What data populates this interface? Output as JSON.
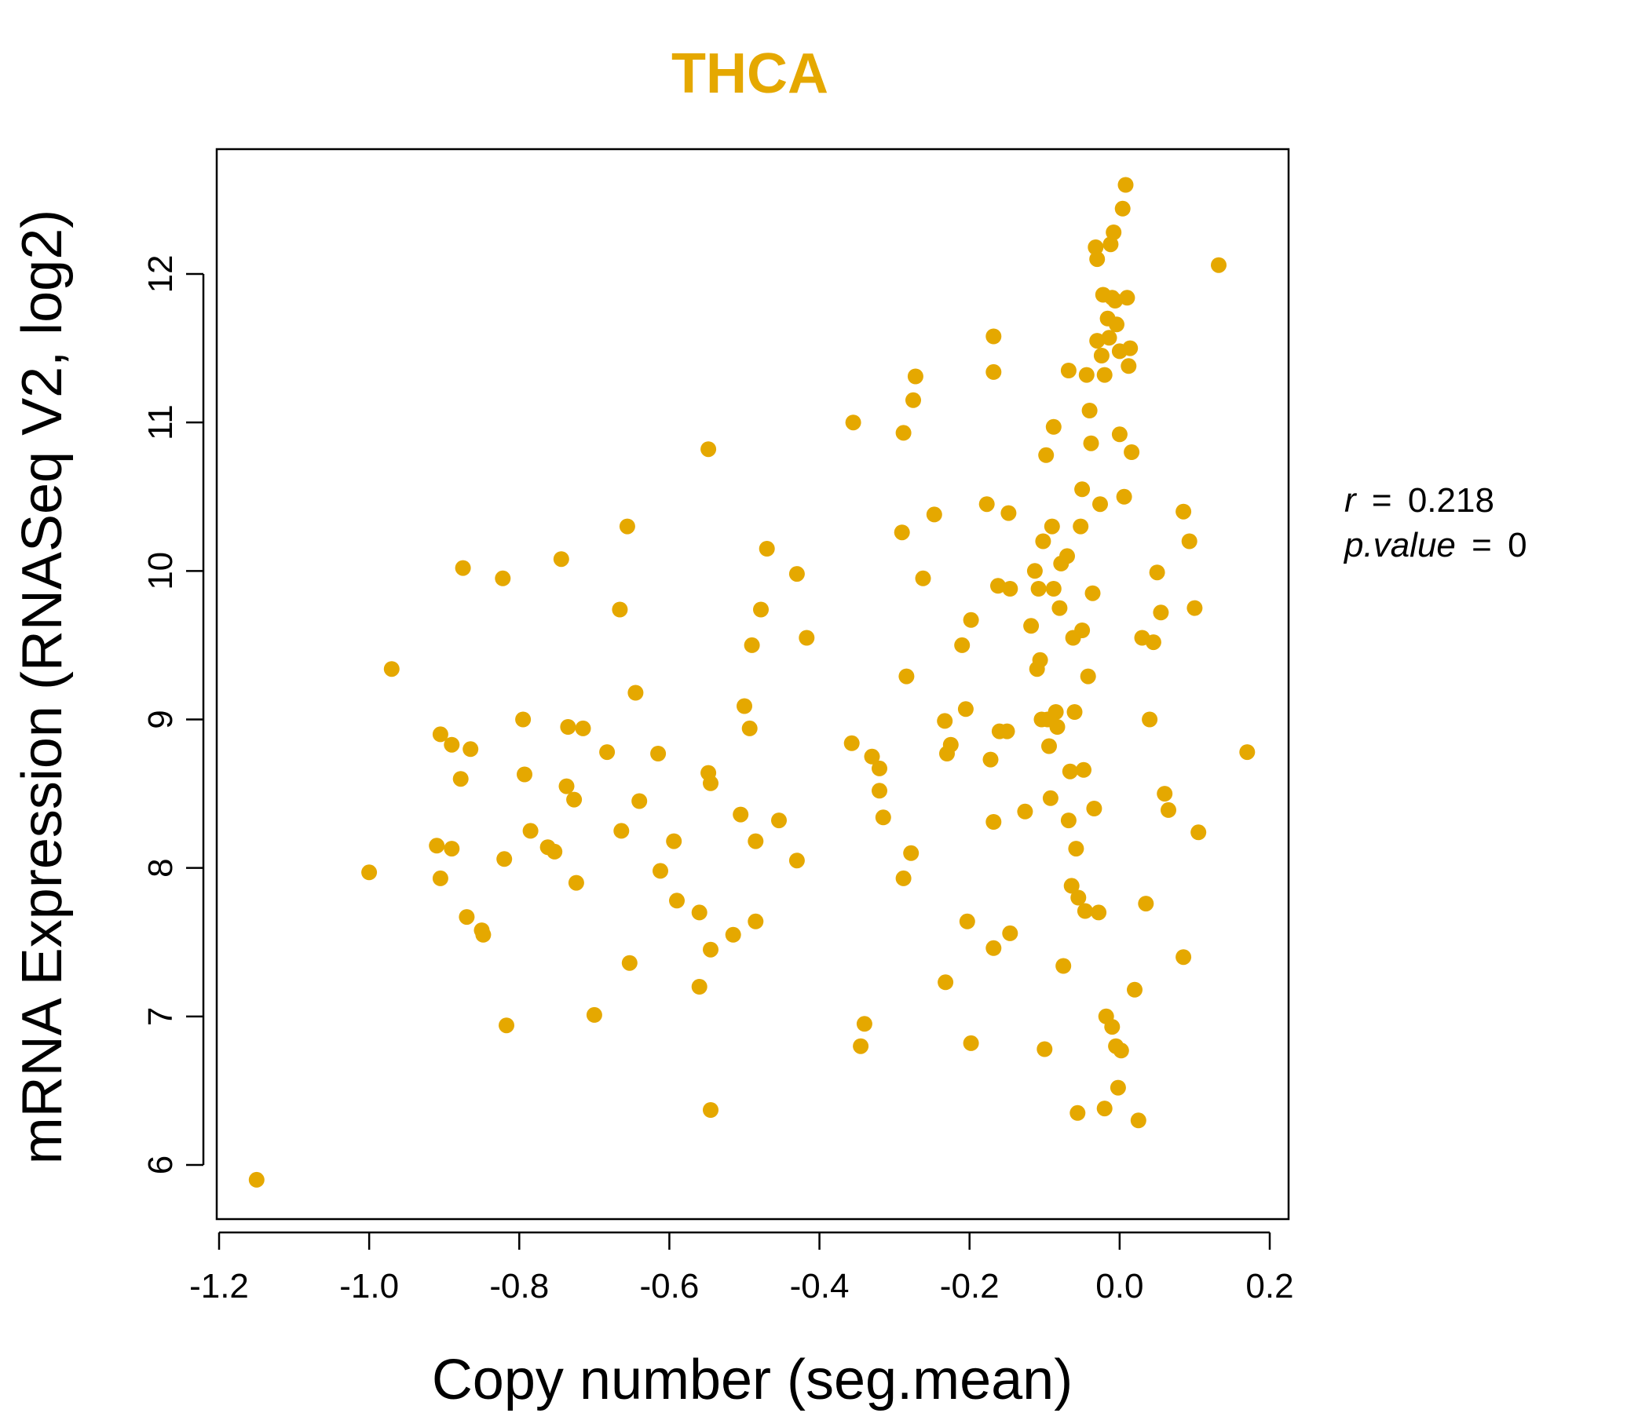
{
  "chart_data": {
    "type": "scatter",
    "title": "THCA",
    "title_color": "#E5A800",
    "point_color": "#E5A800",
    "xlabel": "Copy number (seg.mean)",
    "ylabel": "mRNA Expression (RNASeq V2, log2)",
    "xlim": [
      -1.2,
      0.2
    ],
    "ylim": [
      5.7,
      12.85
    ],
    "x_ticks": [
      -1.2,
      -1.0,
      -0.8,
      -0.6,
      -0.4,
      -0.2,
      0.0,
      0.2
    ],
    "x_tick_labels": [
      "-1.2",
      "-1.0",
      "-0.8",
      "-0.6",
      "-0.4",
      "-0.2",
      "0.0",
      "0.2"
    ],
    "y_ticks": [
      6,
      7,
      8,
      9,
      10,
      11,
      12
    ],
    "y_tick_labels": [
      "6",
      "7",
      "8",
      "9",
      "10",
      "11",
      "12"
    ],
    "annotations": {
      "r_label": "r",
      "r_eq": "=",
      "r_value": "0.218",
      "p_label": "p.value",
      "p_eq": "=",
      "p_value": "0"
    },
    "points": [
      [
        -1.15,
        5.9
      ],
      [
        -1.0,
        7.97
      ],
      [
        -0.97,
        9.34
      ],
      [
        -0.91,
        8.15
      ],
      [
        -0.905,
        8.9
      ],
      [
        -0.905,
        7.93
      ],
      [
        -0.89,
        8.83
      ],
      [
        -0.89,
        8.13
      ],
      [
        -0.875,
        10.02
      ],
      [
        -0.878,
        8.6
      ],
      [
        -0.87,
        7.67
      ],
      [
        -0.865,
        8.8
      ],
      [
        -0.85,
        7.58
      ],
      [
        -0.848,
        7.55
      ],
      [
        -0.822,
        9.95
      ],
      [
        -0.82,
        8.06
      ],
      [
        -0.817,
        6.94
      ],
      [
        -0.795,
        9.0
      ],
      [
        -0.793,
        8.63
      ],
      [
        -0.785,
        8.25
      ],
      [
        -0.762,
        8.14
      ],
      [
        -0.753,
        8.11
      ],
      [
        -0.744,
        10.08
      ],
      [
        -0.737,
        8.55
      ],
      [
        -0.735,
        8.95
      ],
      [
        -0.727,
        8.46
      ],
      [
        -0.724,
        7.9
      ],
      [
        -0.715,
        8.94
      ],
      [
        -0.7,
        7.01
      ],
      [
        -0.683,
        8.78
      ],
      [
        -0.666,
        9.74
      ],
      [
        -0.664,
        8.25
      ],
      [
        -0.656,
        10.3
      ],
      [
        -0.653,
        7.36
      ],
      [
        -0.645,
        9.18
      ],
      [
        -0.64,
        8.45
      ],
      [
        -0.615,
        8.77
      ],
      [
        -0.612,
        7.98
      ],
      [
        -0.594,
        8.18
      ],
      [
        -0.59,
        7.78
      ],
      [
        -0.56,
        7.7
      ],
      [
        -0.56,
        7.2
      ],
      [
        -0.548,
        10.82
      ],
      [
        -0.548,
        8.64
      ],
      [
        -0.545,
        8.57
      ],
      [
        -0.545,
        7.45
      ],
      [
        -0.545,
        6.37
      ],
      [
        -0.515,
        7.55
      ],
      [
        -0.505,
        8.36
      ],
      [
        -0.5,
        9.09
      ],
      [
        -0.493,
        8.94
      ],
      [
        -0.49,
        9.5
      ],
      [
        -0.485,
        8.18
      ],
      [
        -0.485,
        7.64
      ],
      [
        -0.478,
        9.74
      ],
      [
        -0.47,
        10.15
      ],
      [
        -0.454,
        8.32
      ],
      [
        -0.43,
        9.98
      ],
      [
        -0.43,
        8.05
      ],
      [
        -0.417,
        9.55
      ],
      [
        -0.355,
        11.0
      ],
      [
        -0.357,
        8.84
      ],
      [
        -0.34,
        6.95
      ],
      [
        -0.345,
        6.8
      ],
      [
        -0.33,
        8.75
      ],
      [
        -0.32,
        8.67
      ],
      [
        -0.32,
        8.52
      ],
      [
        -0.315,
        8.34
      ],
      [
        -0.29,
        10.26
      ],
      [
        -0.288,
        10.93
      ],
      [
        -0.288,
        7.93
      ],
      [
        -0.284,
        9.29
      ],
      [
        -0.278,
        8.1
      ],
      [
        -0.275,
        11.15
      ],
      [
        -0.272,
        11.31
      ],
      [
        -0.262,
        9.95
      ],
      [
        -0.247,
        10.38
      ],
      [
        -0.233,
        8.99
      ],
      [
        -0.232,
        7.23
      ],
      [
        -0.23,
        8.77
      ],
      [
        -0.225,
        8.83
      ],
      [
        -0.21,
        9.5
      ],
      [
        -0.205,
        9.07
      ],
      [
        -0.203,
        7.64
      ],
      [
        -0.198,
        9.67
      ],
      [
        -0.198,
        6.82
      ],
      [
        -0.177,
        10.45
      ],
      [
        -0.172,
        8.73
      ],
      [
        -0.168,
        11.58
      ],
      [
        -0.168,
        11.34
      ],
      [
        -0.168,
        8.31
      ],
      [
        -0.168,
        7.46
      ],
      [
        -0.162,
        9.9
      ],
      [
        -0.16,
        8.92
      ],
      [
        -0.15,
        8.92
      ],
      [
        -0.148,
        10.39
      ],
      [
        -0.146,
        9.88
      ],
      [
        -0.146,
        7.56
      ],
      [
        -0.126,
        8.38
      ],
      [
        -0.118,
        9.63
      ],
      [
        -0.113,
        10.0
      ],
      [
        -0.11,
        9.34
      ],
      [
        -0.108,
        9.88
      ],
      [
        -0.106,
        9.4
      ],
      [
        -0.104,
        9.0
      ],
      [
        -0.102,
        10.2
      ],
      [
        -0.1,
        6.78
      ],
      [
        -0.098,
        10.78
      ],
      [
        -0.096,
        9.0
      ],
      [
        -0.094,
        8.82
      ],
      [
        -0.092,
        8.47
      ],
      [
        -0.09,
        10.3
      ],
      [
        -0.088,
        10.97
      ],
      [
        -0.088,
        9.88
      ],
      [
        -0.085,
        9.05
      ],
      [
        -0.083,
        8.95
      ],
      [
        -0.08,
        9.75
      ],
      [
        -0.078,
        10.05
      ],
      [
        -0.075,
        7.34
      ],
      [
        -0.07,
        10.1
      ],
      [
        -0.068,
        11.35
      ],
      [
        -0.068,
        8.32
      ],
      [
        -0.066,
        8.65
      ],
      [
        -0.064,
        7.88
      ],
      [
        -0.062,
        9.55
      ],
      [
        -0.06,
        9.05
      ],
      [
        -0.058,
        8.13
      ],
      [
        -0.056,
        6.35
      ],
      [
        -0.055,
        7.8
      ],
      [
        -0.052,
        10.3
      ],
      [
        -0.05,
        10.55
      ],
      [
        -0.05,
        9.6
      ],
      [
        -0.048,
        8.66
      ],
      [
        -0.046,
        7.71
      ],
      [
        -0.044,
        11.32
      ],
      [
        -0.042,
        9.29
      ],
      [
        -0.04,
        11.08
      ],
      [
        -0.038,
        10.86
      ],
      [
        -0.036,
        9.85
      ],
      [
        -0.034,
        8.4
      ],
      [
        -0.032,
        12.18
      ],
      [
        -0.03,
        11.55
      ],
      [
        -0.03,
        12.1
      ],
      [
        -0.028,
        7.7
      ],
      [
        -0.026,
        10.45
      ],
      [
        -0.024,
        11.45
      ],
      [
        -0.022,
        11.86
      ],
      [
        -0.02,
        11.32
      ],
      [
        -0.02,
        6.38
      ],
      [
        -0.018,
        7.0
      ],
      [
        -0.016,
        11.7
      ],
      [
        -0.014,
        11.57
      ],
      [
        -0.012,
        12.2
      ],
      [
        -0.01,
        11.84
      ],
      [
        -0.01,
        6.93
      ],
      [
        -0.008,
        12.28
      ],
      [
        -0.006,
        11.82
      ],
      [
        -0.005,
        6.8
      ],
      [
        -0.004,
        11.66
      ],
      [
        -0.002,
        6.52
      ],
      [
        0.0,
        11.48
      ],
      [
        0.0,
        10.92
      ],
      [
        0.002,
        6.77
      ],
      [
        0.004,
        12.44
      ],
      [
        0.006,
        10.5
      ],
      [
        0.008,
        12.6
      ],
      [
        0.01,
        11.84
      ],
      [
        0.012,
        11.38
      ],
      [
        0.014,
        11.5
      ],
      [
        0.016,
        10.8
      ],
      [
        0.02,
        7.18
      ],
      [
        0.025,
        6.3
      ],
      [
        0.03,
        9.55
      ],
      [
        0.035,
        7.76
      ],
      [
        0.04,
        9.0
      ],
      [
        0.045,
        9.52
      ],
      [
        0.05,
        9.99
      ],
      [
        0.055,
        9.72
      ],
      [
        0.06,
        8.5
      ],
      [
        0.065,
        8.39
      ],
      [
        0.085,
        10.4
      ],
      [
        0.085,
        7.4
      ],
      [
        0.093,
        10.2
      ],
      [
        0.1,
        9.75
      ],
      [
        0.105,
        8.24
      ],
      [
        0.132,
        12.06
      ],
      [
        0.17,
        8.78
      ]
    ]
  }
}
